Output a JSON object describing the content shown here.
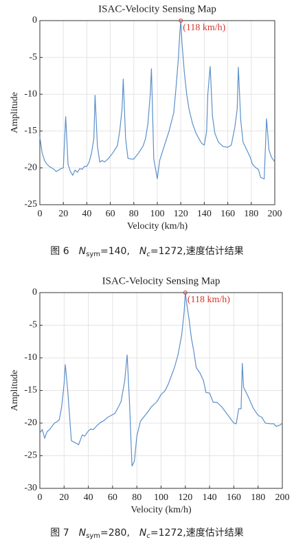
{
  "chart_data": [
    {
      "type": "line",
      "title": "ISAC-Velocity Sensing Map",
      "x_label": "Velocity (km/h)",
      "y_label": "Amplitude",
      "color": "#5b8fc9",
      "xlim": [
        0,
        200
      ],
      "xticks": [
        0,
        20,
        40,
        60,
        80,
        100,
        120,
        140,
        160,
        180,
        200
      ],
      "ylim": [
        -25,
        0
      ],
      "yticks": [
        -25,
        -20,
        -15,
        -10,
        -5,
        0
      ],
      "grid": true,
      "annotation": {
        "text": "(118 km/h)",
        "x": 120,
        "y": 0,
        "color": "#d9342b"
      },
      "caption": [
        "图 6",
        "N",
        "sym",
        "=140,",
        "N",
        "c",
        "=1272,速度估计结果"
      ],
      "x": [
        0,
        2,
        4,
        6,
        8,
        10,
        12,
        14,
        16,
        18,
        20,
        22,
        24,
        26,
        28,
        30,
        32,
        34,
        36,
        38,
        40,
        42,
        44,
        46,
        47,
        49,
        51,
        53,
        55,
        58,
        62,
        66,
        68,
        70,
        71,
        73,
        75,
        78,
        80,
        84,
        88,
        90,
        92,
        94,
        95,
        97,
        100,
        102,
        106,
        110,
        114,
        116,
        118,
        119,
        120,
        121,
        123,
        125,
        127,
        130,
        133,
        136,
        138,
        140,
        142,
        143,
        145,
        147,
        149,
        152,
        156,
        160,
        163,
        166,
        168,
        169,
        171,
        173,
        176,
        179,
        181,
        184,
        186,
        188,
        191,
        193,
        195,
        197,
        200
      ],
      "values": [
        -15.8,
        -18,
        -19,
        -19.5,
        -19.8,
        -20,
        -20.2,
        -20.5,
        -20.3,
        -20.1,
        -20,
        -13,
        -19.5,
        -20.5,
        -21,
        -20.3,
        -20.6,
        -20.1,
        -20.2,
        -19.8,
        -19.8,
        -19.2,
        -18,
        -16,
        -10.1,
        -17,
        -19.2,
        -19,
        -19.2,
        -18.8,
        -18,
        -17,
        -15,
        -12,
        -7.9,
        -16,
        -18.7,
        -18.8,
        -18.8,
        -18,
        -17,
        -16,
        -14,
        -10,
        -6.5,
        -18.8,
        -21.5,
        -19,
        -17,
        -15,
        -12.5,
        -9,
        -5,
        -2,
        0,
        -3,
        -7,
        -10,
        -12,
        -14,
        -15.3,
        -16.2,
        -16.7,
        -16.9,
        -15,
        -10,
        -6.2,
        -13,
        -15.3,
        -16.5,
        -17.1,
        -17.2,
        -16.9,
        -14.5,
        -12,
        -6.3,
        -13.5,
        -16.5,
        -17.5,
        -18.5,
        -19.5,
        -20,
        -20.2,
        -21.3,
        -21.5,
        -13.3,
        -17.5,
        -18.5,
        -19.2
      ]
    },
    {
      "type": "line",
      "title": "ISAC-Velocity Sensing Map",
      "x_label": "Velocity (km/h)",
      "y_label": "Amplitude",
      "color": "#5b8fc9",
      "xlim": [
        0,
        200
      ],
      "xticks": [
        0,
        20,
        40,
        60,
        80,
        100,
        120,
        140,
        160,
        180,
        200
      ],
      "ylim": [
        -30,
        0
      ],
      "yticks": [
        -30,
        -25,
        -20,
        -15,
        -10,
        -5,
        0
      ],
      "grid": true,
      "annotation": {
        "text": "(118 km/h)",
        "x": 120,
        "y": 0,
        "color": "#d9342b"
      },
      "caption": [
        "图 7",
        "N",
        "sym",
        "=280,",
        "N",
        "c",
        "=1272,速度估计结果"
      ],
      "x": [
        0,
        2,
        4,
        6,
        8,
        10,
        12,
        14,
        16,
        18,
        20,
        21,
        23,
        26,
        30,
        32,
        35,
        37,
        40,
        42,
        44,
        47,
        50,
        53,
        56,
        59,
        62,
        64,
        67,
        70,
        72,
        74,
        76,
        78,
        80,
        83,
        86,
        89,
        92,
        95,
        97,
        100,
        103,
        106,
        108,
        111,
        114,
        117,
        119,
        120,
        121,
        123,
        125,
        127,
        129,
        132,
        135,
        137,
        140,
        143,
        146,
        150,
        154,
        158,
        160,
        162,
        164,
        166,
        167,
        168,
        172,
        176,
        180,
        183,
        186,
        190,
        193,
        195,
        198,
        200
      ],
      "values": [
        -21.5,
        -21,
        -22.3,
        -21.3,
        -21,
        -20.5,
        -20,
        -19.8,
        -19.5,
        -17.5,
        -14,
        -11,
        -15,
        -22.7,
        -23.1,
        -23.3,
        -21.8,
        -22,
        -21.2,
        -20.9,
        -21,
        -20.4,
        -19.9,
        -19.6,
        -19.1,
        -18.8,
        -18.5,
        -17.8,
        -16.7,
        -13.5,
        -9.5,
        -17,
        -26.6,
        -25.8,
        -22,
        -19.7,
        -19,
        -18.3,
        -17.5,
        -17,
        -16.6,
        -15.6,
        -15.1,
        -14,
        -13,
        -11.5,
        -9.5,
        -6.5,
        -3,
        0,
        -1.5,
        -4,
        -7,
        -9,
        -11.5,
        -12.3,
        -13.5,
        -15.3,
        -15.4,
        -16.8,
        -16.8,
        -17.5,
        -18.5,
        -19.5,
        -20,
        -20.1,
        -17.8,
        -17.8,
        -10.8,
        -14.5,
        -16,
        -17.7,
        -18.8,
        -19.1,
        -20,
        -20.1,
        -20.1,
        -20.5,
        -20.3,
        -20
      ]
    }
  ]
}
